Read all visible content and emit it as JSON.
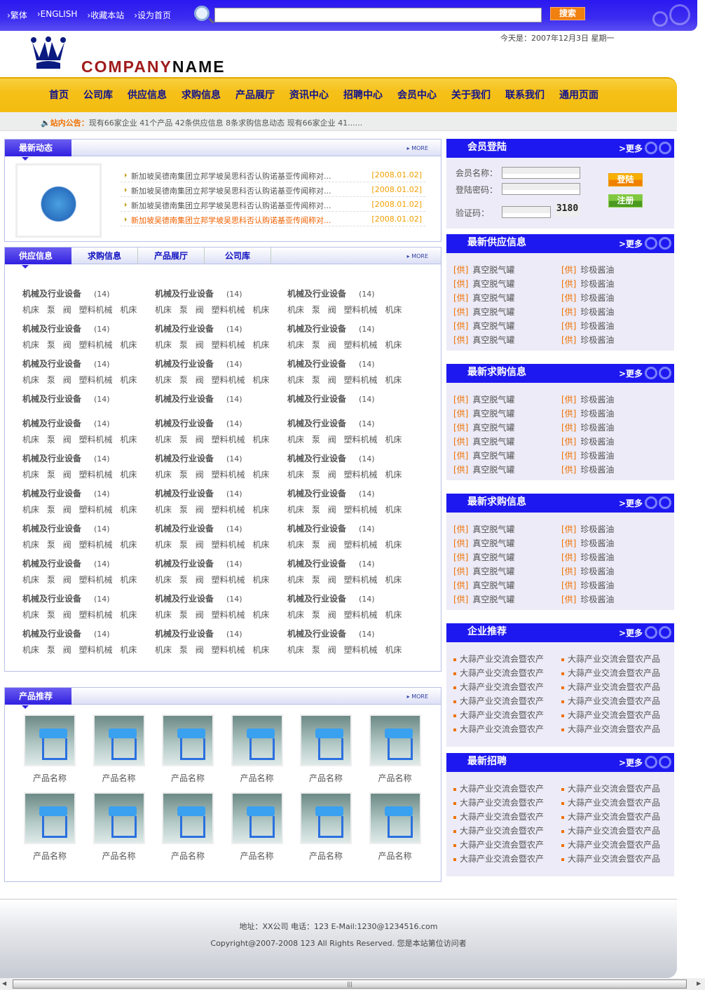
{
  "colors": {
    "brand_blue": "#1e18f0",
    "nav_yellow": "#f5c018",
    "accent_orange": "#f07000",
    "date_orange": "#f0a000"
  },
  "top": {
    "links": [
      "繁体",
      "ENGLISH",
      "收藏本站",
      "设为首页"
    ],
    "search_value": "",
    "search_button": "搜索"
  },
  "date": "今天是：2007年12月3日 星期一",
  "logo": {
    "part1": "COMPANY",
    "part2": "NAME"
  },
  "nav": [
    "首页",
    "公司库",
    "供应信息",
    "求购信息",
    "产品展厅",
    "资讯中心",
    "招聘中心",
    "会员中心",
    "关于我们",
    "联系我们",
    "通用页面"
  ],
  "notice": {
    "label": "站内公告：",
    "text": "现有66家企业 41个产品 42条供应信息 8条求购信息动态 现有66家企业 41......"
  },
  "news": {
    "title": "最新动态",
    "more": "MORE",
    "items": [
      {
        "text": "新加坡吴德南集团立邦学坡吴思科否认购诺基亚传闻称对...",
        "date": "[2008.01.02]"
      },
      {
        "text": "新加坡吴德南集团立邦学坡吴思科否认购诺基亚传闻称对...",
        "date": "[2008.01.02]"
      },
      {
        "text": "新加坡吴德南集团立邦学坡吴思科否认购诺基亚传闻称对...",
        "date": "[2008.01.02]"
      },
      {
        "text": "新加坡吴德南集团立邦学坡吴思科否认购诺基亚传闻称对...",
        "date": "[2008.01.02]",
        "highlight": true
      }
    ]
  },
  "tabs": {
    "items": [
      "供应信息",
      "求购信息",
      "产品展厅",
      "公司库"
    ],
    "more": "MORE"
  },
  "categories": {
    "title": "机械及行业设备",
    "count": "(14)",
    "subs": "机床 泵 阀 塑料机械 机床",
    "rows": 11,
    "no_subs_row": 4
  },
  "products": {
    "title": "产品推荐",
    "more": "MORE",
    "items": [
      "产品名称",
      "产品名称",
      "产品名称",
      "产品名称",
      "产品名称",
      "产品名称",
      "产品名称",
      "产品名称",
      "产品名称",
      "产品名称",
      "产品名称",
      "产品名称"
    ]
  },
  "login": {
    "title": "会员登陆",
    "more": ">更多",
    "username_label": "会员名称：",
    "password_label": "登陆密码：",
    "captcha_label": "验证码：",
    "captcha": "3180",
    "login_button": "登陆",
    "register_button": "注册"
  },
  "side": [
    {
      "title": "最新供应信息",
      "more": ">更多",
      "tag": "[供]",
      "left": "真空脱气罐",
      "right": "珍极酱油",
      "count": 6
    },
    {
      "title": "最新求购信息",
      "more": ">更多",
      "tag": "[供]",
      "left": "真空脱气罐",
      "right": "珍极酱油",
      "count": 6
    },
    {
      "title": "最新求购信息",
      "more": ">更多",
      "tag": "[供]",
      "left": "真空脱气罐",
      "right": "珍极酱油",
      "count": 6
    },
    {
      "title": "企业推荐",
      "more": ">更多",
      "left": "大蒜产业交流会暨农产",
      "right": "大蒜产业交流会暨农产品",
      "count": 6
    },
    {
      "title": "最新招聘",
      "more": ">更多",
      "left": "大蒜产业交流会暨农产",
      "right": "大蒜产业交流会暨农产品",
      "count": 6
    }
  ],
  "footer": {
    "line1": "地址：XX公司 电话：123 E-Mail:1230@1234516.com",
    "line2": "Copyright@2007-2008 123 All Rights Reserved. 您是本站第位访问者"
  }
}
